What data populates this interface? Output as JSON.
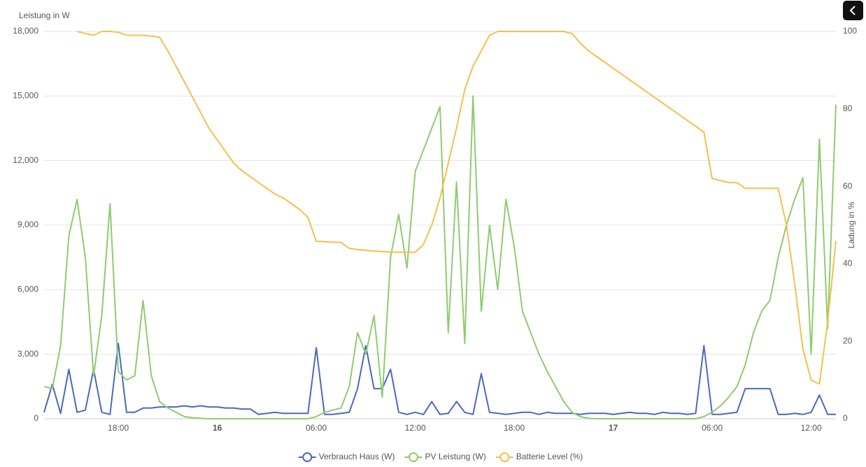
{
  "chart_data": {
    "type": "line",
    "y_label": "Leistung in W",
    "y2_label": "Ladung in %",
    "categories": [
      null,
      null,
      null,
      null,
      null,
      null,
      null,
      null,
      null,
      "18:00",
      null,
      null,
      null,
      null,
      null,
      null,
      null,
      null,
      null,
      null,
      null,
      "16",
      null,
      null,
      null,
      null,
      null,
      null,
      null,
      null,
      null,
      null,
      null,
      "06:00",
      null,
      null,
      null,
      null,
      null,
      null,
      null,
      null,
      null,
      null,
      null,
      "12:00",
      null,
      null,
      null,
      null,
      null,
      null,
      null,
      null,
      null,
      null,
      null,
      "18:00",
      null,
      null,
      null,
      null,
      null,
      null,
      null,
      null,
      null,
      null,
      null,
      "17",
      null,
      null,
      null,
      null,
      null,
      null,
      null,
      null,
      null,
      null,
      null,
      "06:00",
      null,
      null,
      null,
      null,
      null,
      null,
      null,
      null,
      null,
      null,
      null,
      "12:00",
      null,
      null,
      null
    ],
    "ylim": [
      0,
      18000
    ],
    "yticks": [
      0,
      {
        "value": 3000,
        "label": "3,000"
      },
      {
        "value": 6000,
        "label": "6,000"
      },
      {
        "value": 9000,
        "label": "9,000"
      },
      {
        "value": 12000,
        "label": "12,000"
      },
      {
        "value": 15000,
        "label": "15,000"
      },
      {
        "value": 18000,
        "label": "18,000"
      }
    ],
    "y2lim": [
      0,
      100
    ],
    "y2ticks": [
      0,
      20,
      40,
      60,
      80,
      100
    ],
    "grid": true,
    "legend": "bottom",
    "series": [
      {
        "name": "Verbrauch Haus (W)",
        "color": "#4a69bd",
        "values": [
          300,
          1600,
          250,
          2300,
          300,
          400,
          2300,
          300,
          200,
          3500,
          300,
          300,
          500,
          500,
          550,
          550,
          550,
          600,
          550,
          600,
          550,
          550,
          500,
          500,
          450,
          450,
          200,
          250,
          300,
          250,
          250,
          250,
          250,
          3300,
          200,
          200,
          250,
          300,
          1400,
          3400,
          1400,
          1400,
          2300,
          300,
          200,
          300,
          200,
          800,
          200,
          250,
          800,
          300,
          200,
          2100,
          300,
          250,
          200,
          250,
          300,
          300,
          200,
          300,
          250,
          250,
          250,
          200,
          250,
          250,
          250,
          200,
          250,
          300,
          250,
          250,
          200,
          300,
          250,
          250,
          200,
          250,
          3400,
          200,
          200,
          250,
          300,
          1400,
          1400,
          1400,
          1400,
          200,
          200,
          250,
          200,
          300,
          1100,
          200,
          200
        ]
      },
      {
        "name": "PV Leistung (W)",
        "color": "#8fcb6f",
        "values": [
          1500,
          1400,
          3400,
          8500,
          10200,
          7500,
          2000,
          4800,
          10000,
          2200,
          1800,
          2000,
          5500,
          2000,
          800,
          500,
          300,
          100,
          50,
          20,
          0,
          0,
          0,
          0,
          0,
          0,
          0,
          0,
          0,
          0,
          0,
          0,
          0,
          100,
          300,
          400,
          500,
          1500,
          4000,
          3000,
          4800,
          1000,
          7500,
          9500,
          7000,
          11500,
          12500,
          13500,
          14500,
          4000,
          11000,
          3500,
          15000,
          5000,
          9000,
          6000,
          10200,
          8000,
          5000,
          4000,
          3000,
          2200,
          1500,
          800,
          300,
          100,
          20,
          0,
          0,
          0,
          0,
          0,
          0,
          0,
          0,
          0,
          0,
          0,
          0,
          0,
          100,
          300,
          600,
          1000,
          1500,
          2500,
          4000,
          5000,
          5500,
          7500,
          9000,
          10200,
          11200,
          3000,
          13000,
          4200,
          14600
        ]
      },
      {
        "name": "Batterie Level (%)",
        "color": "#f5c04a",
        "axis": "y2",
        "values": [
          null,
          null,
          null,
          null,
          100,
          99.5,
          99,
          100,
          100,
          99.8,
          99,
          99,
          99,
          98.8,
          98.5,
          95,
          91,
          87,
          83,
          79,
          75,
          72,
          69,
          66,
          64,
          62.5,
          61,
          59.5,
          58,
          57,
          55.5,
          54,
          52,
          45.8,
          45.7,
          45.6,
          45.5,
          44,
          43.7,
          43.5,
          43.3,
          43.2,
          43,
          43,
          43,
          43,
          45,
          50,
          57,
          66,
          75,
          85,
          91,
          95,
          99,
          100,
          100,
          100,
          100,
          100,
          100,
          100,
          100,
          100,
          99.5,
          97,
          95,
          93.5,
          92,
          90.5,
          89,
          87.5,
          86,
          84.5,
          83,
          81.5,
          80,
          78.5,
          77,
          75.5,
          74,
          62,
          61.5,
          61,
          61,
          59.5,
          59.5,
          59.5,
          59.5,
          59.5,
          50,
          35,
          18,
          10,
          9,
          25,
          46
        ]
      }
    ]
  }
}
